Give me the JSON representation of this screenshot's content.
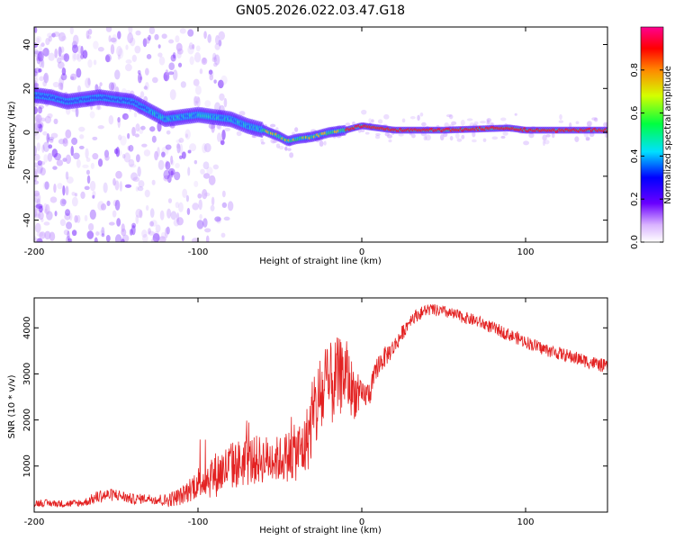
{
  "title": "GN05.2026.022.03.47.G18",
  "chart_data": [
    {
      "type": "heatmap",
      "name": "spectrogram",
      "xlabel": "Height of straight line (km)",
      "ylabel": "Frequency (Hz)",
      "xlim": [
        -200,
        150
      ],
      "ylim": [
        -50,
        48
      ],
      "xticks": [
        -200,
        -100,
        0,
        100
      ],
      "yticks": [
        -40,
        -20,
        0,
        20,
        40
      ],
      "ridge": {
        "x": [
          -200,
          -190,
          -180,
          -170,
          -160,
          -150,
          -140,
          -130,
          -120,
          -110,
          -100,
          -90,
          -80,
          -70,
          -60,
          -50,
          -45,
          -40,
          -30,
          -20,
          -10,
          0,
          10,
          20,
          50,
          90,
          100,
          150
        ],
        "y": [
          17,
          16,
          14,
          15,
          16,
          15,
          14,
          10,
          6,
          7,
          8,
          7,
          6,
          3,
          1,
          -2,
          -4,
          -3,
          -2,
          0,
          1,
          3,
          2,
          1,
          1,
          2,
          1,
          1
        ]
      },
      "colorbar": {
        "label": "Normalized spectral amplitude",
        "range": [
          0,
          1
        ],
        "ticks": [
          0.0,
          0.2,
          0.4,
          0.6,
          0.8
        ]
      }
    },
    {
      "type": "line",
      "name": "snr",
      "xlabel": "Height of straight line (km)",
      "ylabel": "SNR (10 * v/v)",
      "xlim": [
        -200,
        150
      ],
      "ylim": [
        0,
        4650
      ],
      "xticks": [
        -200,
        -100,
        0,
        100
      ],
      "yticks": [
        1000,
        2000,
        3000,
        4000
      ],
      "color": "#e32222",
      "envelope": {
        "x": [
          -200,
          -180,
          -170,
          -160,
          -150,
          -140,
          -130,
          -120,
          -110,
          -100,
          -90,
          -80,
          -70,
          -60,
          -50,
          -40,
          -35,
          -30,
          -25,
          -20,
          -15,
          -10,
          -5,
          0,
          5,
          10,
          20,
          30,
          40,
          50,
          60,
          70,
          80,
          90,
          100,
          110,
          120,
          130,
          140,
          150
        ],
        "y": [
          200,
          180,
          200,
          350,
          380,
          280,
          300,
          250,
          350,
          650,
          800,
          1000,
          1100,
          1150,
          1150,
          1300,
          1400,
          2000,
          2500,
          2700,
          2900,
          3000,
          2600,
          2500,
          2600,
          3200,
          3600,
          4200,
          4400,
          4350,
          4250,
          4150,
          4000,
          3850,
          3700,
          3550,
          3450,
          3350,
          3250,
          3150
        ]
      },
      "spread": {
        "x": [
          -200,
          -170,
          -160,
          -130,
          -110,
          -90,
          -70,
          -50,
          -35,
          -25,
          -15,
          -5,
          0,
          10,
          30,
          50,
          100,
          150
        ],
        "y": [
          80,
          80,
          150,
          100,
          200,
          500,
          550,
          500,
          700,
          1000,
          900,
          600,
          300,
          250,
          140,
          130,
          140,
          150
        ]
      }
    }
  ]
}
